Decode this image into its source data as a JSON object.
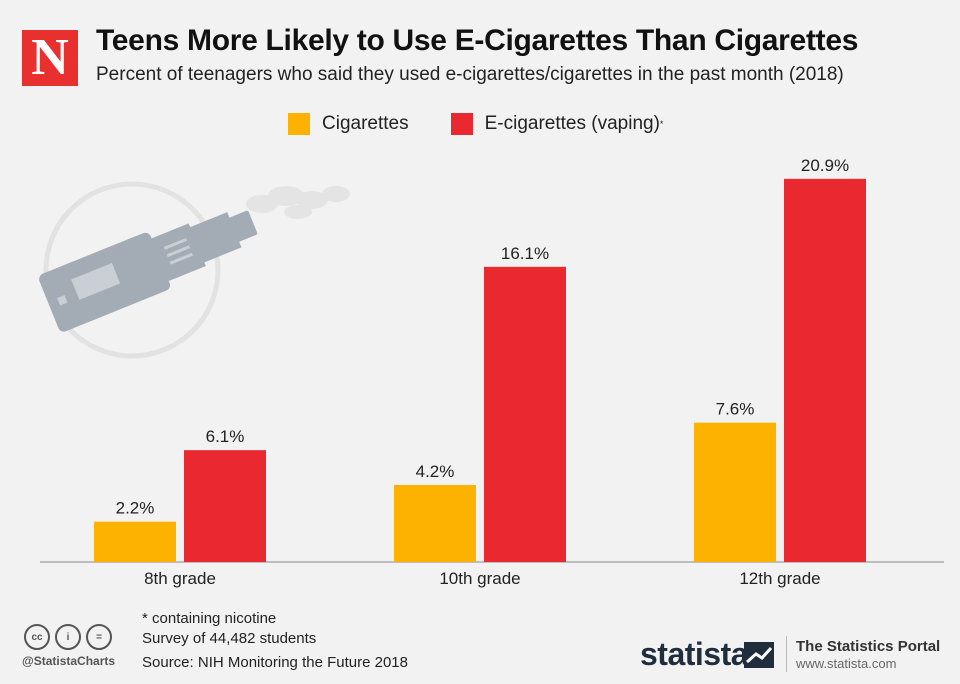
{
  "header": {
    "logo_letter": "N",
    "title": "Teens More Likely to Use E-Cigarettes Than Cigarettes",
    "subtitle": "Percent of teenagers who said they used e-cigarettes/cigarettes in the past month (2018)"
  },
  "legend": {
    "cigarettes": "Cigarettes",
    "ecig": "E-cigarettes (vaping)",
    "ecig_marker": "*"
  },
  "colors": {
    "cigarettes": "#fdb100",
    "ecig": "#e9282f",
    "vape_icon": "#a3acb5"
  },
  "chart_data": {
    "type": "bar",
    "categories": [
      "8th grade",
      "10th grade",
      "12th grade"
    ],
    "series": [
      {
        "name": "Cigarettes",
        "values": [
          2.2,
          4.2,
          7.6
        ],
        "labels": [
          "2.2%",
          "4.2%",
          "7.6%"
        ]
      },
      {
        "name": "E-cigarettes (vaping)",
        "values": [
          6.1,
          16.1,
          20.9
        ],
        "labels": [
          "6.1%",
          "16.1%",
          "20.9%"
        ]
      }
    ],
    "title": "Teens More Likely to Use E-Cigarettes Than Cigarettes",
    "ylim": [
      0,
      21
    ],
    "grid": false,
    "legend_position": "top"
  },
  "footer": {
    "note": "* containing nicotine",
    "survey": "Survey of 44,482 students",
    "source": "Source: NIH Monitoring the Future 2018",
    "handle": "@StatistaCharts",
    "brand": "statista",
    "portal_title": "The Statistics Portal",
    "portal_url": "www.statista.com",
    "cc_icons": [
      "cc-icon",
      "attribution-icon",
      "no-derivatives-icon"
    ]
  }
}
